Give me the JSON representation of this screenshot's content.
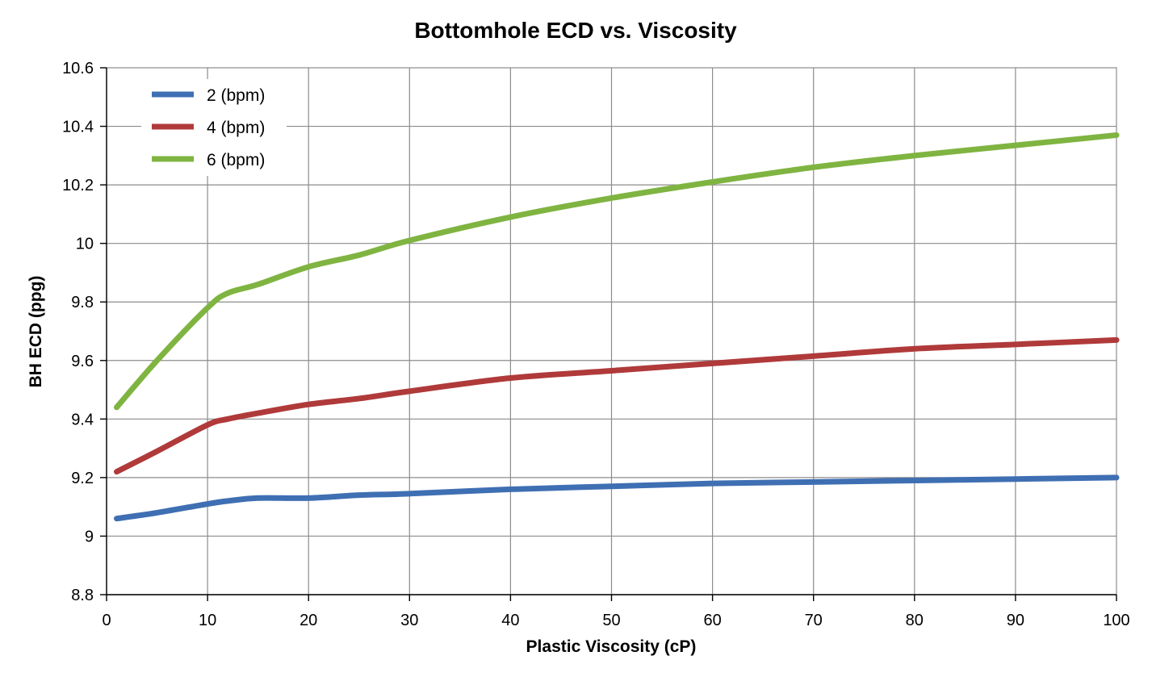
{
  "chart_data": {
    "type": "line",
    "title": "Bottomhole ECD vs. Viscosity",
    "xlabel": "Plastic Viscosity (cP)",
    "ylabel": "BH ECD (ppg)",
    "xlim": [
      0,
      100
    ],
    "ylim": [
      8.8,
      10.6
    ],
    "x_ticks": [
      0,
      10,
      20,
      30,
      40,
      50,
      60,
      70,
      80,
      90,
      100
    ],
    "y_ticks": [
      8.8,
      9,
      9.2,
      9.4,
      9.6,
      9.8,
      10,
      10.2,
      10.4,
      10.6
    ],
    "x_tick_labels": [
      "0",
      "10",
      "20",
      "30",
      "40",
      "50",
      "60",
      "70",
      "80",
      "90",
      "100"
    ],
    "y_tick_labels": [
      "8.8",
      "9",
      "9.2",
      "9.4",
      "9.6",
      "9.8",
      "10",
      "10.2",
      "10.4",
      "10.6"
    ],
    "grid": true,
    "legend_position": "top-left",
    "series": [
      {
        "name": "2 (bpm)",
        "color": "#3f6fb3",
        "x": [
          1,
          5,
          10,
          12,
          15,
          20,
          25,
          30,
          40,
          50,
          60,
          70,
          80,
          90,
          100
        ],
        "y": [
          9.06,
          9.08,
          9.11,
          9.12,
          9.13,
          9.13,
          9.14,
          9.145,
          9.16,
          9.17,
          9.18,
          9.185,
          9.19,
          9.195,
          9.2
        ]
      },
      {
        "name": "4 (bpm)",
        "color": "#b03a3a",
        "x": [
          1,
          5,
          10,
          12,
          15,
          20,
          25,
          30,
          40,
          50,
          60,
          70,
          80,
          90,
          100
        ],
        "y": [
          9.22,
          9.29,
          9.38,
          9.4,
          9.42,
          9.45,
          9.47,
          9.495,
          9.54,
          9.565,
          9.59,
          9.615,
          9.64,
          9.655,
          9.67
        ]
      },
      {
        "name": "6 (bpm)",
        "color": "#7fb441",
        "x": [
          1,
          5,
          10,
          12,
          15,
          20,
          25,
          30,
          40,
          50,
          60,
          70,
          80,
          90,
          100
        ],
        "y": [
          9.44,
          9.6,
          9.78,
          9.83,
          9.86,
          9.92,
          9.96,
          10.01,
          10.09,
          10.155,
          10.21,
          10.26,
          10.3,
          10.335,
          10.37
        ]
      }
    ]
  }
}
